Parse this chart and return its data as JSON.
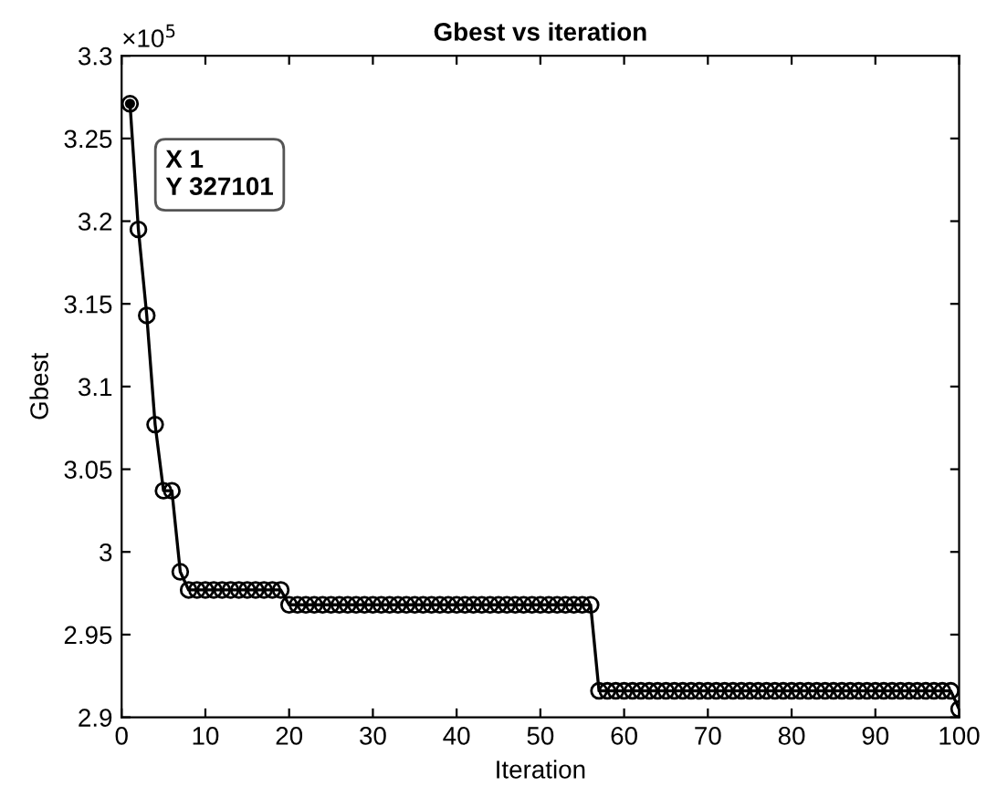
{
  "chart_data": {
    "type": "line",
    "title": "Gbest vs iteration",
    "xlabel": "Iteration",
    "ylabel": "Gbest",
    "x": [
      1,
      2,
      3,
      4,
      5,
      6,
      7,
      8,
      9,
      10,
      11,
      12,
      13,
      14,
      15,
      16,
      17,
      18,
      19,
      20,
      21,
      22,
      23,
      24,
      25,
      26,
      27,
      28,
      29,
      30,
      31,
      32,
      33,
      34,
      35,
      36,
      37,
      38,
      39,
      40,
      41,
      42,
      43,
      44,
      45,
      46,
      47,
      48,
      49,
      50,
      51,
      52,
      53,
      54,
      55,
      56,
      57,
      58,
      59,
      60,
      61,
      62,
      63,
      64,
      65,
      66,
      67,
      68,
      69,
      70,
      71,
      72,
      73,
      74,
      75,
      76,
      77,
      78,
      79,
      80,
      81,
      82,
      83,
      84,
      85,
      86,
      87,
      88,
      89,
      90,
      91,
      92,
      93,
      94,
      95,
      96,
      97,
      98,
      99,
      100
    ],
    "series": [
      {
        "color": "#000000",
        "values": [
          3.27101,
          3.195,
          3.143,
          3.077,
          3.037,
          3.037,
          2.988,
          2.977,
          2.977,
          2.977,
          2.977,
          2.977,
          2.977,
          2.977,
          2.977,
          2.977,
          2.977,
          2.977,
          2.977,
          2.968,
          2.968,
          2.968,
          2.968,
          2.968,
          2.968,
          2.968,
          2.968,
          2.968,
          2.968,
          2.968,
          2.968,
          2.968,
          2.968,
          2.968,
          2.968,
          2.968,
          2.968,
          2.968,
          2.968,
          2.968,
          2.968,
          2.968,
          2.968,
          2.968,
          2.968,
          2.968,
          2.968,
          2.968,
          2.968,
          2.968,
          2.968,
          2.968,
          2.968,
          2.968,
          2.968,
          2.968,
          2.916,
          2.916,
          2.916,
          2.916,
          2.916,
          2.916,
          2.916,
          2.916,
          2.916,
          2.916,
          2.916,
          2.916,
          2.916,
          2.916,
          2.916,
          2.916,
          2.916,
          2.916,
          2.916,
          2.916,
          2.916,
          2.916,
          2.916,
          2.916,
          2.916,
          2.916,
          2.916,
          2.916,
          2.916,
          2.916,
          2.916,
          2.916,
          2.916,
          2.916,
          2.916,
          2.916,
          2.916,
          2.916,
          2.916,
          2.916,
          2.916,
          2.916,
          2.916,
          2.905
        ]
      }
    ],
    "marker": "circle",
    "line_style": "solid",
    "grid": false,
    "legend": false,
    "xlim": [
      0,
      100
    ],
    "xticks": [
      0,
      10,
      20,
      30,
      40,
      50,
      60,
      70,
      80,
      90,
      100
    ],
    "ylim": [
      2.9,
      3.3
    ],
    "yticks": [
      2.9,
      2.95,
      3,
      3.05,
      3.1,
      3.15,
      3.2,
      3.25,
      3.3
    ],
    "annotations": [
      "×10$^{5}$",
      {
        "text": "X 1\nY 327101",
        "x": 1,
        "y": 3.27101
      }
    ]
  }
}
